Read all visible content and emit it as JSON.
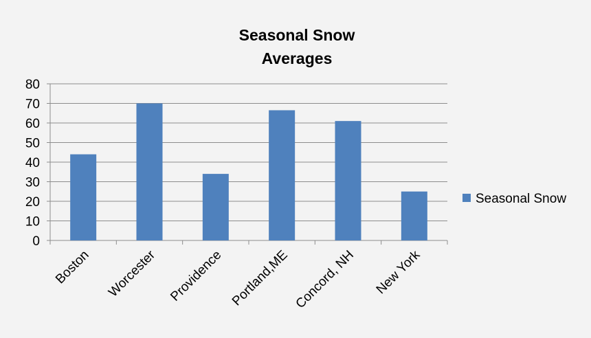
{
  "chart_data": {
    "type": "bar",
    "title_lines": [
      "Seasonal Snow",
      "Averages"
    ],
    "categories": [
      "Boston",
      "Worcester",
      "Providence",
      "Portland,ME",
      "Concord, NH",
      "New York"
    ],
    "series": [
      {
        "name": "Seasonal Snow",
        "values": [
          44,
          70,
          34,
          66.5,
          61,
          25
        ],
        "color": "#4f81bd"
      }
    ],
    "ylim": [
      0,
      80
    ],
    "yticks": [
      "0",
      "10",
      "20",
      "30",
      "40",
      "50",
      "60",
      "70",
      "80"
    ],
    "grid": true,
    "legend_position": "right"
  }
}
